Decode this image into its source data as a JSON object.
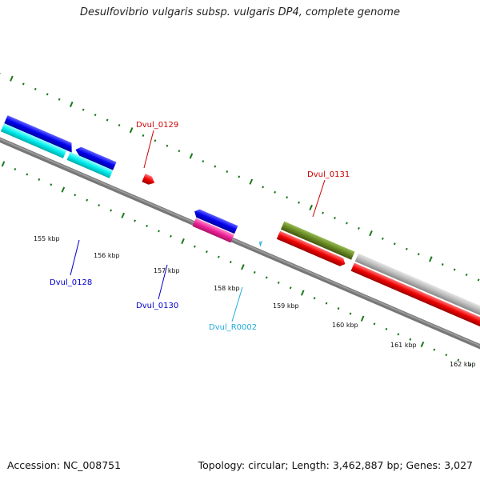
{
  "title": "Desulfovibrio vulgaris subsp. vulgaris DP4, complete genome",
  "footer": {
    "accession": "Accession: NC_008751",
    "summary": "Topology: circular; Length: 3,462,887 bp; Genes: 3,027"
  },
  "scale": {
    "tick_labels": [
      "155 kbp",
      "156 kbp",
      "157 kbp",
      "158 kbp",
      "159 kbp",
      "160 kbp",
      "161 kbp",
      "162 kbp"
    ]
  },
  "genes": [
    {
      "id": "Dvul_0128",
      "label": "Dvul_0128",
      "color": "#0000cc"
    },
    {
      "id": "Dvul_0129",
      "label": "Dvul_0129",
      "color": "#cc0000"
    },
    {
      "id": "Dvul_0130",
      "label": "Dvul_0130",
      "color": "#0000cc"
    },
    {
      "id": "Dvul_R0002",
      "label": "Dvul_R0002",
      "color": "#22aadd"
    },
    {
      "id": "Dvul_0131",
      "label": "Dvul_0131",
      "color": "#cc0000"
    }
  ],
  "colors": {
    "backbone": "#777777",
    "tick": "#1a7a1a",
    "blue_feature": "#0000ee",
    "cyan_feature": "#00eeee",
    "red_feature": "#ee0000",
    "magenta_feature": "#ee2299",
    "olive_feature": "#668822",
    "grey_feature": "#bbbbbb",
    "trna_feature": "#33bbee"
  }
}
